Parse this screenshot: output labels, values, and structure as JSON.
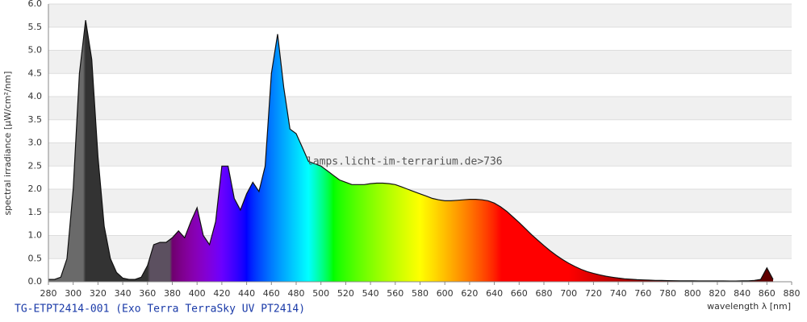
{
  "chart_data": {
    "type": "area",
    "title": "TG-ETPT2414-001 (Exo Terra TerraSky UV PT2414)",
    "watermark": "lamps.licht-im-terrarium.de>736",
    "x_label": "wavelength λ [nm]",
    "y_label": "spectral irradiance [µW/cm²/nm]",
    "x": [
      280,
      285,
      290,
      295,
      300,
      305,
      310,
      315,
      320,
      325,
      330,
      335,
      340,
      345,
      350,
      355,
      360,
      365,
      370,
      375,
      380,
      385,
      390,
      395,
      400,
      405,
      410,
      415,
      420,
      425,
      430,
      435,
      440,
      445,
      450,
      455,
      460,
      465,
      470,
      475,
      480,
      485,
      490,
      495,
      500,
      505,
      510,
      515,
      520,
      525,
      530,
      535,
      540,
      545,
      550,
      555,
      560,
      565,
      570,
      575,
      580,
      585,
      590,
      595,
      600,
      605,
      610,
      615,
      620,
      625,
      630,
      635,
      640,
      645,
      650,
      655,
      660,
      665,
      670,
      675,
      680,
      685,
      690,
      695,
      700,
      705,
      710,
      715,
      720,
      725,
      730,
      735,
      740,
      745,
      750,
      755,
      760,
      765,
      770,
      775,
      780,
      785,
      790,
      795,
      800,
      805,
      810,
      815,
      820,
      825,
      830,
      835,
      840,
      845,
      850,
      855,
      860,
      865
    ],
    "values": [
      0.05,
      0.05,
      0.1,
      0.5,
      2.0,
      4.5,
      5.65,
      4.8,
      2.7,
      1.2,
      0.5,
      0.2,
      0.08,
      0.05,
      0.05,
      0.1,
      0.35,
      0.8,
      0.85,
      0.85,
      0.95,
      1.1,
      0.95,
      1.3,
      1.6,
      1.0,
      0.8,
      1.3,
      2.5,
      2.5,
      1.8,
      1.55,
      1.9,
      2.15,
      1.95,
      2.5,
      4.5,
      5.35,
      4.2,
      3.3,
      3.2,
      2.9,
      2.6,
      2.55,
      2.5,
      2.4,
      2.3,
      2.2,
      2.15,
      2.1,
      2.1,
      2.1,
      2.12,
      2.13,
      2.13,
      2.12,
      2.1,
      2.05,
      2.0,
      1.95,
      1.9,
      1.85,
      1.8,
      1.77,
      1.75,
      1.75,
      1.76,
      1.77,
      1.78,
      1.78,
      1.77,
      1.75,
      1.7,
      1.62,
      1.52,
      1.4,
      1.28,
      1.15,
      1.02,
      0.9,
      0.78,
      0.67,
      0.57,
      0.48,
      0.4,
      0.33,
      0.27,
      0.22,
      0.18,
      0.15,
      0.12,
      0.1,
      0.08,
      0.065,
      0.055,
      0.045,
      0.04,
      0.035,
      0.03,
      0.028,
      0.025,
      0.022,
      0.02,
      0.02,
      0.02,
      0.018,
      0.018,
      0.017,
      0.017,
      0.017,
      0.016,
      0.016,
      0.02,
      0.02,
      0.03,
      0.05,
      0.3,
      0.05
    ],
    "xlim": [
      280,
      880
    ],
    "xticks": [
      280,
      300,
      320,
      340,
      360,
      380,
      400,
      420,
      440,
      460,
      480,
      500,
      520,
      540,
      560,
      580,
      600,
      620,
      640,
      660,
      680,
      700,
      720,
      740,
      760,
      780,
      800,
      820,
      840,
      860,
      880
    ],
    "ylim": [
      0,
      6
    ],
    "yticks": [
      {
        "value": 0,
        "label": "0.0"
      },
      0.5,
      {
        "value": 1,
        "label": "1.0"
      },
      1.5,
      {
        "value": 2,
        "label": "2.0"
      },
      2.5,
      {
        "value": 3,
        "label": "3.0"
      },
      3.5,
      {
        "value": 4,
        "label": "4.0"
      },
      4.5,
      {
        "value": 5,
        "label": "5.0"
      },
      5.5,
      {
        "value": 6,
        "label": "6.0"
      }
    ],
    "grid": true
  }
}
